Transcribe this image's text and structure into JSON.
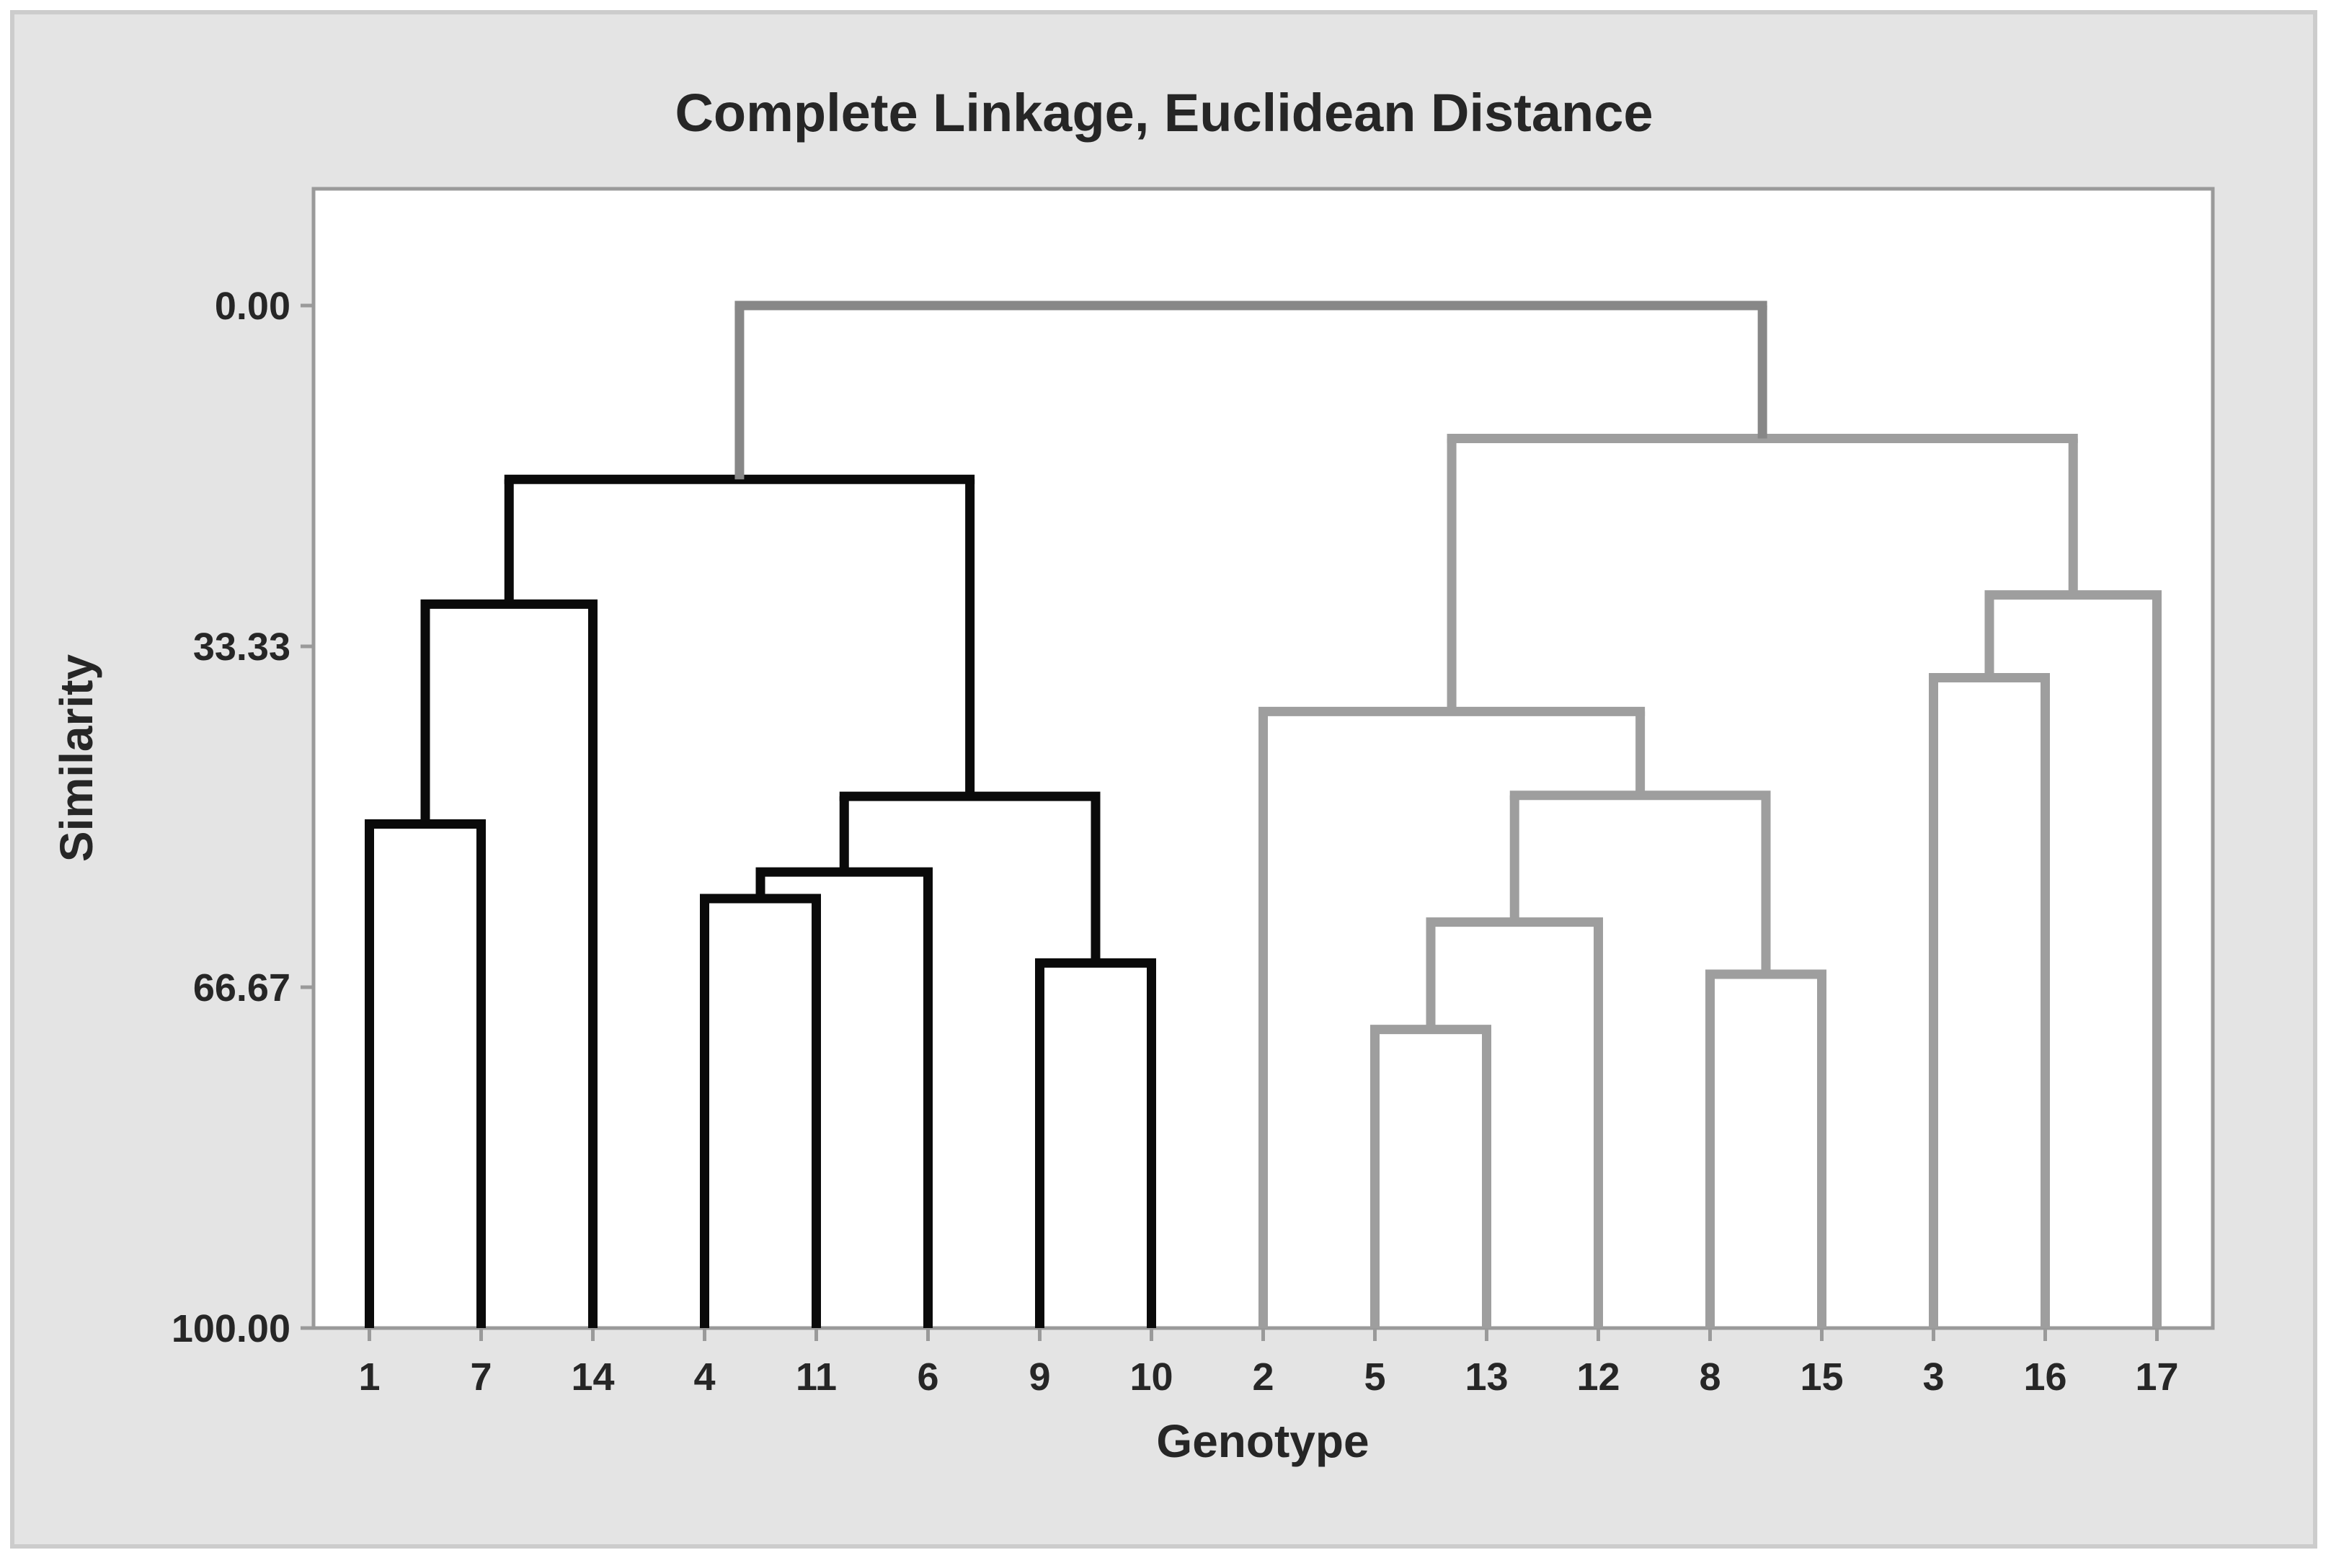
{
  "figure": {
    "title": "Complete Linkage, Euclidean Distance",
    "canvas_background": "#e4e4e4",
    "canvas_border_color": "#cccccc",
    "plot_background": "#ffffff",
    "frame_color": "#9a9a9a",
    "text_color": "#262626"
  },
  "y_axis": {
    "label": "Similarity",
    "tick_labels": [
      "0.00",
      "33.33",
      "66.67",
      "100.00"
    ]
  },
  "x_axis": {
    "label": "Genotype",
    "tick_labels": [
      "1",
      "7",
      "14",
      "4",
      "11",
      "6",
      "9",
      "10",
      "2",
      "5",
      "13",
      "12",
      "8",
      "15",
      "3",
      "16",
      "17"
    ]
  },
  "chart_data": {
    "type": "dendrogram",
    "title": "Complete Linkage, Euclidean Distance",
    "xlabel": "Genotype",
    "ylabel": "Similarity",
    "y_axis_inverted_note": "similarity 0.00 at top, 100.00 at bottom axis",
    "y_ticks": [
      {
        "value": 0.0,
        "label": "0.00"
      },
      {
        "value": 33.33,
        "label": "33.33"
      },
      {
        "value": 66.67,
        "label": "66.67"
      },
      {
        "value": 100.0,
        "label": "100.00"
      }
    ],
    "y_range_shown": [
      -11.42,
      100
    ],
    "grid": "off",
    "legend": "none",
    "leaf_order": [
      "1",
      "7",
      "14",
      "4",
      "11",
      "6",
      "9",
      "10",
      "2",
      "5",
      "13",
      "12",
      "8",
      "15",
      "3",
      "16",
      "17"
    ],
    "clusters": [
      {
        "name": "cluster-1",
        "color_key": "left",
        "members": [
          "1",
          "7",
          "14",
          "4",
          "11",
          "6",
          "9",
          "10"
        ]
      },
      {
        "name": "cluster-2",
        "color_key": "right",
        "members": [
          "2",
          "5",
          "13",
          "12",
          "8",
          "15",
          "3",
          "16",
          "17"
        ]
      }
    ],
    "merges": [
      {
        "id": "L1",
        "children": [
          "leaf:1",
          "leaf:7"
        ],
        "similarity": 50.7,
        "color": "left"
      },
      {
        "id": "L2",
        "children": [
          "node:L1",
          "leaf:14"
        ],
        "similarity": 29.2,
        "color": "left"
      },
      {
        "id": "L3",
        "children": [
          "leaf:4",
          "leaf:11"
        ],
        "similarity": 58.0,
        "color": "left"
      },
      {
        "id": "L4",
        "children": [
          "node:L3",
          "leaf:6"
        ],
        "similarity": 55.4,
        "color": "left"
      },
      {
        "id": "L5",
        "children": [
          "leaf:9",
          "leaf:10"
        ],
        "similarity": 64.3,
        "color": "left"
      },
      {
        "id": "L6",
        "children": [
          "node:L4",
          "node:L5"
        ],
        "similarity": 48.0,
        "color": "left"
      },
      {
        "id": "L7",
        "children": [
          "node:L2",
          "node:L6"
        ],
        "similarity": 17.0,
        "color": "left"
      },
      {
        "id": "R1",
        "children": [
          "leaf:5",
          "leaf:13"
        ],
        "similarity": 70.8,
        "color": "right"
      },
      {
        "id": "R2",
        "children": [
          "node:R1",
          "leaf:12"
        ],
        "similarity": 60.3,
        "color": "right"
      },
      {
        "id": "R3",
        "children": [
          "leaf:8",
          "leaf:15"
        ],
        "similarity": 65.4,
        "color": "right"
      },
      {
        "id": "R4",
        "children": [
          "node:R2",
          "node:R3"
        ],
        "similarity": 47.9,
        "color": "right"
      },
      {
        "id": "R5",
        "children": [
          "leaf:2",
          "node:R4"
        ],
        "similarity": 39.7,
        "color": "right"
      },
      {
        "id": "R6",
        "children": [
          "leaf:3",
          "leaf:16"
        ],
        "similarity": 36.4,
        "color": "right"
      },
      {
        "id": "R7",
        "children": [
          "node:R6",
          "leaf:17"
        ],
        "similarity": 28.3,
        "color": "right"
      },
      {
        "id": "R8",
        "children": [
          "node:R5",
          "node:R7"
        ],
        "similarity": 13.0,
        "color": "right"
      },
      {
        "id": "ROOT",
        "children": [
          "node:L7",
          "node:R8"
        ],
        "similarity": 0.0,
        "color": "root"
      }
    ],
    "colors": {
      "left": "#0a0a0a",
      "right": "#9e9e9e",
      "root": "#878787"
    }
  }
}
